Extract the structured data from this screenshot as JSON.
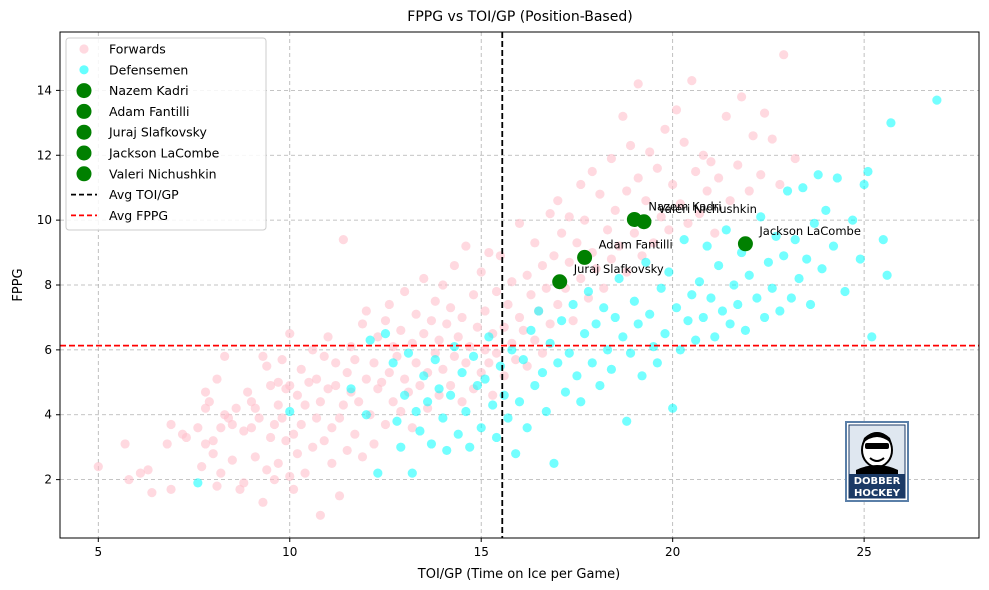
{
  "chart_data": {
    "type": "scatter",
    "title": "FPPG vs TOI/GP (Position-Based)",
    "xlabel": "TOI/GP (Time on Ice per Game)",
    "ylabel": "FPPG",
    "xlim": [
      4,
      28
    ],
    "ylim": [
      0.2,
      15.8
    ],
    "xticks": [
      5,
      10,
      15,
      20,
      25
    ],
    "yticks": [
      2,
      4,
      6,
      8,
      10,
      12,
      14
    ],
    "grid": true,
    "legend_position": "top-left",
    "avg_toi": 15.55,
    "avg_fppg": 6.13,
    "colors": {
      "forwards": "#ffc0cb",
      "defensemen": "#00ffff",
      "highlight": "#008000",
      "avg_toi_line": "#000000",
      "avg_fppg_line": "#ff0000"
    },
    "legend": [
      {
        "label": "Forwards",
        "kind": "forwards"
      },
      {
        "label": "Defensemen",
        "kind": "defensemen"
      },
      {
        "label": "Nazem Kadri",
        "kind": "highlight"
      },
      {
        "label": "Adam Fantilli",
        "kind": "highlight"
      },
      {
        "label": "Juraj Slafkovsky",
        "kind": "highlight"
      },
      {
        "label": "Jackson LaCombe",
        "kind": "highlight"
      },
      {
        "label": "Valeri Nichushkin",
        "kind": "highlight"
      },
      {
        "label": "Avg TOI/GP",
        "kind": "avg_toi_line"
      },
      {
        "label": "Avg FPPG",
        "kind": "avg_fppg_line"
      }
    ],
    "highlighted_players": [
      {
        "name": "Nazem Kadri",
        "x": 19.0,
        "y": 10.02
      },
      {
        "name": "Valeri Nichushkin",
        "x": 19.25,
        "y": 9.95
      },
      {
        "name": "Jackson LaCombe",
        "x": 21.9,
        "y": 9.27
      },
      {
        "name": "Adam Fantilli",
        "x": 17.7,
        "y": 8.85
      },
      {
        "name": "Juraj Slafkovsky",
        "x": 17.05,
        "y": 8.1
      }
    ],
    "forwards": [
      [
        5.0,
        2.4
      ],
      [
        5.7,
        3.1
      ],
      [
        5.8,
        2.0
      ],
      [
        6.1,
        2.2
      ],
      [
        6.3,
        2.3
      ],
      [
        6.4,
        1.6
      ],
      [
        6.8,
        3.1
      ],
      [
        6.9,
        3.7
      ],
      [
        6.9,
        1.7
      ],
      [
        7.2,
        3.4
      ],
      [
        7.3,
        3.3
      ],
      [
        7.6,
        3.6
      ],
      [
        7.7,
        2.4
      ],
      [
        7.8,
        4.2
      ],
      [
        7.8,
        3.1
      ],
      [
        7.8,
        4.7
      ],
      [
        7.9,
        4.4
      ],
      [
        8.0,
        3.2
      ],
      [
        8.0,
        2.8
      ],
      [
        8.1,
        1.8
      ],
      [
        8.1,
        5.1
      ],
      [
        8.2,
        2.2
      ],
      [
        8.2,
        3.6
      ],
      [
        8.3,
        4.0
      ],
      [
        8.3,
        5.8
      ],
      [
        8.4,
        3.9
      ],
      [
        8.5,
        3.7
      ],
      [
        8.5,
        2.6
      ],
      [
        8.6,
        4.2
      ],
      [
        8.7,
        1.7
      ],
      [
        8.8,
        3.5
      ],
      [
        8.8,
        1.9
      ],
      [
        8.9,
        4.7
      ],
      [
        9.0,
        3.6
      ],
      [
        9.0,
        4.4
      ],
      [
        9.1,
        2.7
      ],
      [
        9.1,
        4.2
      ],
      [
        9.2,
        3.9
      ],
      [
        9.3,
        5.8
      ],
      [
        9.3,
        1.3
      ],
      [
        9.4,
        2.3
      ],
      [
        9.4,
        5.5
      ],
      [
        9.5,
        4.9
      ],
      [
        9.5,
        3.3
      ],
      [
        9.6,
        3.7
      ],
      [
        9.6,
        2.0
      ],
      [
        9.7,
        4.3
      ],
      [
        9.7,
        5.0
      ],
      [
        9.7,
        2.5
      ],
      [
        9.8,
        3.9
      ],
      [
        9.8,
        5.7
      ],
      [
        9.9,
        4.8
      ],
      [
        9.9,
        3.2
      ],
      [
        10.0,
        4.9
      ],
      [
        10.0,
        2.1
      ],
      [
        10.0,
        6.5
      ],
      [
        10.1,
        3.4
      ],
      [
        10.1,
        1.7
      ],
      [
        10.2,
        4.6
      ],
      [
        10.2,
        2.8
      ],
      [
        10.3,
        5.4
      ],
      [
        10.3,
        3.7
      ],
      [
        10.4,
        4.3
      ],
      [
        10.4,
        2.2
      ],
      [
        10.5,
        5.0
      ],
      [
        10.6,
        3.0
      ],
      [
        10.6,
        6.0
      ],
      [
        10.7,
        3.9
      ],
      [
        10.7,
        5.1
      ],
      [
        10.8,
        4.4
      ],
      [
        10.8,
        0.9
      ],
      [
        10.9,
        3.2
      ],
      [
        10.9,
        5.8
      ],
      [
        11.0,
        4.8
      ],
      [
        11.0,
        6.4
      ],
      [
        11.1,
        3.6
      ],
      [
        11.1,
        2.5
      ],
      [
        11.2,
        4.9
      ],
      [
        11.2,
        5.6
      ],
      [
        11.3,
        3.9
      ],
      [
        11.3,
        1.5
      ],
      [
        11.4,
        4.3
      ],
      [
        11.4,
        9.4
      ],
      [
        11.5,
        5.3
      ],
      [
        11.5,
        2.9
      ],
      [
        11.6,
        4.7
      ],
      [
        11.6,
        6.1
      ],
      [
        11.7,
        3.4
      ],
      [
        11.7,
        5.7
      ],
      [
        11.8,
        4.4
      ],
      [
        11.9,
        6.8
      ],
      [
        11.9,
        2.7
      ],
      [
        12.0,
        5.1
      ],
      [
        12.0,
        7.2
      ],
      [
        12.1,
        4.0
      ],
      [
        12.2,
        5.6
      ],
      [
        12.2,
        3.1
      ],
      [
        12.3,
        6.4
      ],
      [
        12.3,
        4.8
      ],
      [
        12.4,
        5.0
      ],
      [
        12.5,
        6.9
      ],
      [
        12.5,
        3.7
      ],
      [
        12.6,
        5.3
      ],
      [
        12.6,
        7.4
      ],
      [
        12.7,
        4.4
      ],
      [
        12.7,
        6.1
      ],
      [
        12.8,
        5.8
      ],
      [
        12.9,
        4.1
      ],
      [
        12.9,
        6.6
      ],
      [
        13.0,
        5.1
      ],
      [
        13.0,
        7.8
      ],
      [
        13.1,
        4.7
      ],
      [
        13.2,
        6.2
      ],
      [
        13.2,
        3.6
      ],
      [
        13.3,
        5.6
      ],
      [
        13.3,
        7.1
      ],
      [
        13.4,
        4.9
      ],
      [
        13.5,
        6.5
      ],
      [
        13.5,
        8.2
      ],
      [
        13.6,
        5.3
      ],
      [
        13.6,
        4.2
      ],
      [
        13.7,
        6.9
      ],
      [
        13.8,
        5.9
      ],
      [
        13.8,
        7.5
      ],
      [
        13.9,
        4.6
      ],
      [
        13.9,
        6.3
      ],
      [
        14.0,
        5.4
      ],
      [
        14.0,
        8.0
      ],
      [
        14.1,
        6.8
      ],
      [
        14.2,
        4.9
      ],
      [
        14.2,
        7.3
      ],
      [
        14.3,
        5.8
      ],
      [
        14.3,
        8.6
      ],
      [
        14.4,
        6.4
      ],
      [
        14.5,
        4.4
      ],
      [
        14.5,
        7.0
      ],
      [
        14.6,
        5.6
      ],
      [
        14.6,
        9.2
      ],
      [
        14.7,
        6.1
      ],
      [
        14.8,
        7.7
      ],
      [
        14.8,
        4.8
      ],
      [
        14.9,
        6.7
      ],
      [
        15.0,
        5.3
      ],
      [
        15.0,
        8.4
      ],
      [
        15.1,
        6.0
      ],
      [
        15.1,
        7.2
      ],
      [
        15.2,
        5.6
      ],
      [
        15.2,
        9.0
      ],
      [
        15.3,
        6.5
      ],
      [
        15.3,
        4.6
      ],
      [
        15.4,
        7.8
      ],
      [
        15.4,
        5.9
      ],
      [
        15.5,
        8.9
      ],
      [
        15.6,
        6.7
      ],
      [
        15.6,
        5.2
      ],
      [
        15.7,
        7.4
      ],
      [
        15.8,
        6.2
      ],
      [
        15.8,
        8.1
      ],
      [
        15.9,
        5.7
      ],
      [
        16.0,
        7.0
      ],
      [
        16.0,
        9.9
      ],
      [
        16.1,
        6.6
      ],
      [
        16.2,
        8.3
      ],
      [
        16.2,
        5.5
      ],
      [
        16.3,
        7.7
      ],
      [
        16.4,
        6.3
      ],
      [
        16.4,
        9.3
      ],
      [
        16.5,
        7.2
      ],
      [
        16.6,
        8.6
      ],
      [
        16.6,
        5.9
      ],
      [
        16.7,
        7.9
      ],
      [
        16.8,
        10.2
      ],
      [
        16.8,
        6.8
      ],
      [
        16.9,
        8.9
      ],
      [
        17.0,
        7.4
      ],
      [
        17.0,
        10.6
      ],
      [
        17.1,
        9.6
      ],
      [
        17.2,
        7.9
      ],
      [
        17.3,
        8.7
      ],
      [
        17.3,
        10.1
      ],
      [
        17.4,
        6.9
      ],
      [
        17.5,
        9.3
      ],
      [
        17.6,
        11.1
      ],
      [
        17.6,
        8.2
      ],
      [
        17.7,
        10.0
      ],
      [
        17.8,
        7.6
      ],
      [
        17.9,
        11.5
      ],
      [
        17.9,
        9.0
      ],
      [
        18.0,
        8.5
      ],
      [
        18.1,
        10.8
      ],
      [
        18.2,
        7.9
      ],
      [
        18.3,
        9.7
      ],
      [
        18.4,
        11.9
      ],
      [
        18.4,
        8.8
      ],
      [
        18.5,
        10.3
      ],
      [
        18.6,
        9.2
      ],
      [
        18.7,
        13.2
      ],
      [
        18.8,
        8.4
      ],
      [
        18.8,
        10.9
      ],
      [
        18.9,
        12.3
      ],
      [
        19.0,
        9.6
      ],
      [
        19.1,
        14.2
      ],
      [
        19.1,
        11.3
      ],
      [
        19.2,
        8.9
      ],
      [
        19.3,
        10.6
      ],
      [
        19.4,
        12.1
      ],
      [
        19.5,
        9.3
      ],
      [
        19.6,
        11.6
      ],
      [
        19.7,
        10.1
      ],
      [
        19.8,
        12.8
      ],
      [
        19.9,
        9.7
      ],
      [
        20.0,
        11.1
      ],
      [
        20.1,
        13.4
      ],
      [
        20.2,
        10.5
      ],
      [
        20.3,
        12.4
      ],
      [
        20.4,
        9.9
      ],
      [
        20.5,
        14.3
      ],
      [
        20.6,
        11.5
      ],
      [
        20.7,
        10.2
      ],
      [
        20.8,
        12.0
      ],
      [
        20.9,
        10.9
      ],
      [
        21.0,
        11.8
      ],
      [
        21.1,
        9.6
      ],
      [
        21.2,
        11.3
      ],
      [
        21.4,
        13.2
      ],
      [
        21.5,
        10.6
      ],
      [
        21.7,
        11.7
      ],
      [
        21.8,
        13.8
      ],
      [
        22.0,
        10.9
      ],
      [
        22.1,
        12.6
      ],
      [
        22.3,
        11.4
      ],
      [
        22.4,
        13.3
      ],
      [
        22.6,
        12.5
      ],
      [
        22.8,
        11.1
      ],
      [
        22.9,
        15.1
      ],
      [
        23.2,
        11.9
      ]
    ],
    "defensemen": [
      [
        7.6,
        1.9
      ],
      [
        10.0,
        4.1
      ],
      [
        11.6,
        4.8
      ],
      [
        12.0,
        4.0
      ],
      [
        12.1,
        6.3
      ],
      [
        12.3,
        2.2
      ],
      [
        12.5,
        6.5
      ],
      [
        12.7,
        5.6
      ],
      [
        12.8,
        3.8
      ],
      [
        12.9,
        3.0
      ],
      [
        13.0,
        4.6
      ],
      [
        13.1,
        5.9
      ],
      [
        13.2,
        2.2
      ],
      [
        13.3,
        4.1
      ],
      [
        13.4,
        3.5
      ],
      [
        13.5,
        5.2
      ],
      [
        13.6,
        4.4
      ],
      [
        13.7,
        3.1
      ],
      [
        13.8,
        5.7
      ],
      [
        13.9,
        4.8
      ],
      [
        14.0,
        3.9
      ],
      [
        14.1,
        2.9
      ],
      [
        14.2,
        4.6
      ],
      [
        14.3,
        6.1
      ],
      [
        14.4,
        3.4
      ],
      [
        14.5,
        5.3
      ],
      [
        14.6,
        4.1
      ],
      [
        14.7,
        3.0
      ],
      [
        14.8,
        5.8
      ],
      [
        14.9,
        4.9
      ],
      [
        15.0,
        3.6
      ],
      [
        15.1,
        5.1
      ],
      [
        15.2,
        6.4
      ],
      [
        15.3,
        4.3
      ],
      [
        15.4,
        3.3
      ],
      [
        15.5,
        5.5
      ],
      [
        15.6,
        4.6
      ],
      [
        15.7,
        3.9
      ],
      [
        15.8,
        6.0
      ],
      [
        15.9,
        2.8
      ],
      [
        16.0,
        4.4
      ],
      [
        16.1,
        5.7
      ],
      [
        16.2,
        3.6
      ],
      [
        16.3,
        6.6
      ],
      [
        16.4,
        4.9
      ],
      [
        16.5,
        7.2
      ],
      [
        16.6,
        5.3
      ],
      [
        16.7,
        4.1
      ],
      [
        16.8,
        6.2
      ],
      [
        16.9,
        2.5
      ],
      [
        17.0,
        5.6
      ],
      [
        17.1,
        6.9
      ],
      [
        17.2,
        4.7
      ],
      [
        17.3,
        5.9
      ],
      [
        17.4,
        7.4
      ],
      [
        17.5,
        5.2
      ],
      [
        17.6,
        4.4
      ],
      [
        17.7,
        6.5
      ],
      [
        17.8,
        7.8
      ],
      [
        17.9,
        5.6
      ],
      [
        18.0,
        6.8
      ],
      [
        18.1,
        4.9
      ],
      [
        18.2,
        7.3
      ],
      [
        18.3,
        6.0
      ],
      [
        18.4,
        5.4
      ],
      [
        18.5,
        7.0
      ],
      [
        18.6,
        8.2
      ],
      [
        18.7,
        6.4
      ],
      [
        18.8,
        3.8
      ],
      [
        18.9,
        5.9
      ],
      [
        19.0,
        7.5
      ],
      [
        19.1,
        6.8
      ],
      [
        19.2,
        5.2
      ],
      [
        19.3,
        8.7
      ],
      [
        19.4,
        7.1
      ],
      [
        19.5,
        6.1
      ],
      [
        19.6,
        5.6
      ],
      [
        19.7,
        7.9
      ],
      [
        19.8,
        6.5
      ],
      [
        19.9,
        8.4
      ],
      [
        20.0,
        4.2
      ],
      [
        20.1,
        7.3
      ],
      [
        20.2,
        6.0
      ],
      [
        20.3,
        9.4
      ],
      [
        20.4,
        6.9
      ],
      [
        20.5,
        7.7
      ],
      [
        20.6,
        6.3
      ],
      [
        20.7,
        8.1
      ],
      [
        20.8,
        7.0
      ],
      [
        20.9,
        9.2
      ],
      [
        21.0,
        7.6
      ],
      [
        21.1,
        6.4
      ],
      [
        21.2,
        8.6
      ],
      [
        21.3,
        7.2
      ],
      [
        21.4,
        9.7
      ],
      [
        21.5,
        6.8
      ],
      [
        21.6,
        8.0
      ],
      [
        21.7,
        7.4
      ],
      [
        21.8,
        9.0
      ],
      [
        21.9,
        6.6
      ],
      [
        22.0,
        8.3
      ],
      [
        22.2,
        7.6
      ],
      [
        22.3,
        10.1
      ],
      [
        22.4,
        7.0
      ],
      [
        22.5,
        8.7
      ],
      [
        22.6,
        7.9
      ],
      [
        22.7,
        9.5
      ],
      [
        22.8,
        7.2
      ],
      [
        22.9,
        8.9
      ],
      [
        23.0,
        10.9
      ],
      [
        23.1,
        7.6
      ],
      [
        23.2,
        9.4
      ],
      [
        23.3,
        8.2
      ],
      [
        23.4,
        11.0
      ],
      [
        23.5,
        8.8
      ],
      [
        23.6,
        7.4
      ],
      [
        23.7,
        9.9
      ],
      [
        23.8,
        11.4
      ],
      [
        23.9,
        8.5
      ],
      [
        24.0,
        10.3
      ],
      [
        24.2,
        9.2
      ],
      [
        24.3,
        11.3
      ],
      [
        24.5,
        7.8
      ],
      [
        24.7,
        10.0
      ],
      [
        24.9,
        8.8
      ],
      [
        25.0,
        11.1
      ],
      [
        25.1,
        11.5
      ],
      [
        25.2,
        6.4
      ],
      [
        25.5,
        9.4
      ],
      [
        25.6,
        8.3
      ],
      [
        25.7,
        13.0
      ],
      [
        26.9,
        13.7
      ]
    ]
  },
  "watermark": {
    "text_line1": "DOBBER",
    "text_line2": "HOCKEY"
  }
}
